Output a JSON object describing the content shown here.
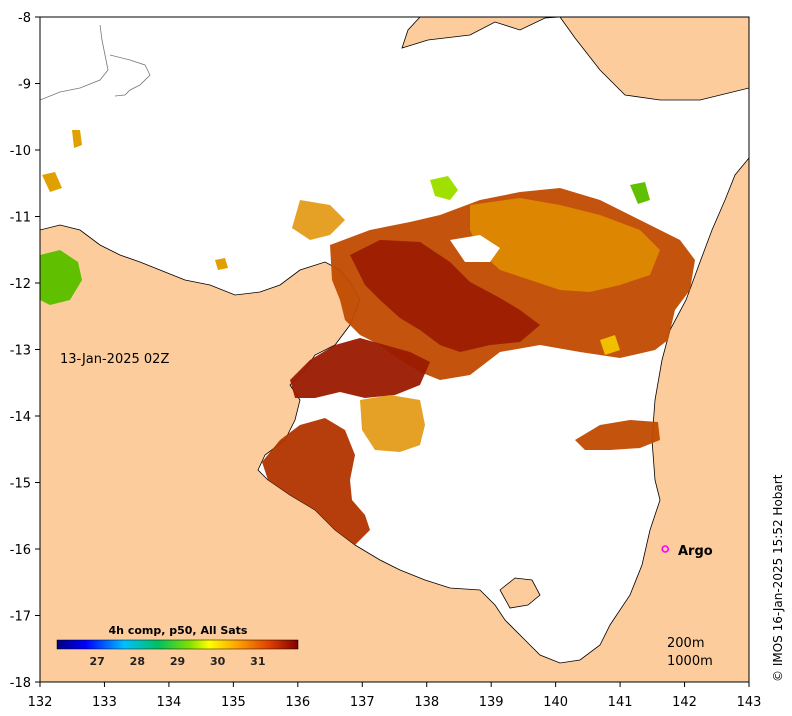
{
  "map": {
    "date_label": "13-Jan-2025 02Z",
    "credit": "© IMOS 16-Jan-2025 15:52 Hobart",
    "depth_contours": [
      "200m",
      "1000m"
    ],
    "x_ticks": [
      "132",
      "133",
      "134",
      "135",
      "136",
      "137",
      "138",
      "139",
      "140",
      "141",
      "142",
      "143"
    ],
    "y_ticks": [
      "-8",
      "-9",
      "-10",
      "-11",
      "-12",
      "-13",
      "-14",
      "-15",
      "-16",
      "-17",
      "-18"
    ],
    "argo": {
      "label": "Argo",
      "lon": 141.7,
      "lat": -16.0
    },
    "colorbar": {
      "title": "4h comp, p50, All Sats",
      "ticks": [
        "27",
        "28",
        "29",
        "30",
        "31"
      ],
      "min": 26,
      "max": 32
    },
    "colors": {
      "land": "#fccc9c",
      "sea": "#ffffff",
      "frame": "#000000",
      "argo_marker": "#ff00ff"
    }
  }
}
